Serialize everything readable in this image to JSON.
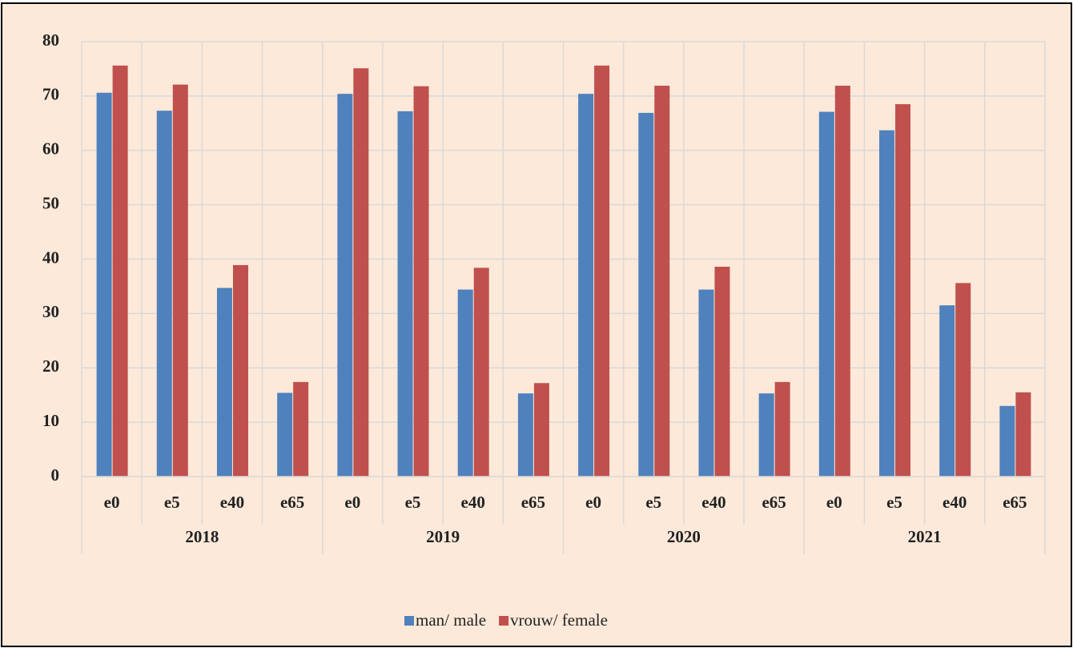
{
  "chart_data": {
    "type": "bar",
    "categories": [
      "e0",
      "e5",
      "e40",
      "e65",
      "e0",
      "e5",
      "e40",
      "e65",
      "e0",
      "e5",
      "e40",
      "e65",
      "e0",
      "e5",
      "e40",
      "e65"
    ],
    "groups": [
      "2018",
      "2019",
      "2020",
      "2021"
    ],
    "series": [
      {
        "name": "man/ male",
        "color": "#4f81bd",
        "values": [
          70.6,
          67.3,
          34.7,
          15.4,
          70.4,
          67.2,
          34.4,
          15.3,
          70.4,
          66.9,
          34.4,
          15.3,
          67.1,
          63.7,
          31.5,
          13.0
        ]
      },
      {
        "name": "vrouw/ female",
        "color": "#c0504d",
        "values": [
          75.6,
          72.1,
          38.9,
          17.4,
          75.1,
          71.8,
          38.4,
          17.2,
          75.6,
          71.9,
          38.6,
          17.4,
          71.9,
          68.5,
          35.6,
          15.5
        ]
      }
    ],
    "ylim": [
      0,
      80
    ],
    "yticks": [
      0,
      10,
      20,
      30,
      40,
      50,
      60,
      70,
      80
    ],
    "grid": true,
    "legend": "bottom"
  }
}
